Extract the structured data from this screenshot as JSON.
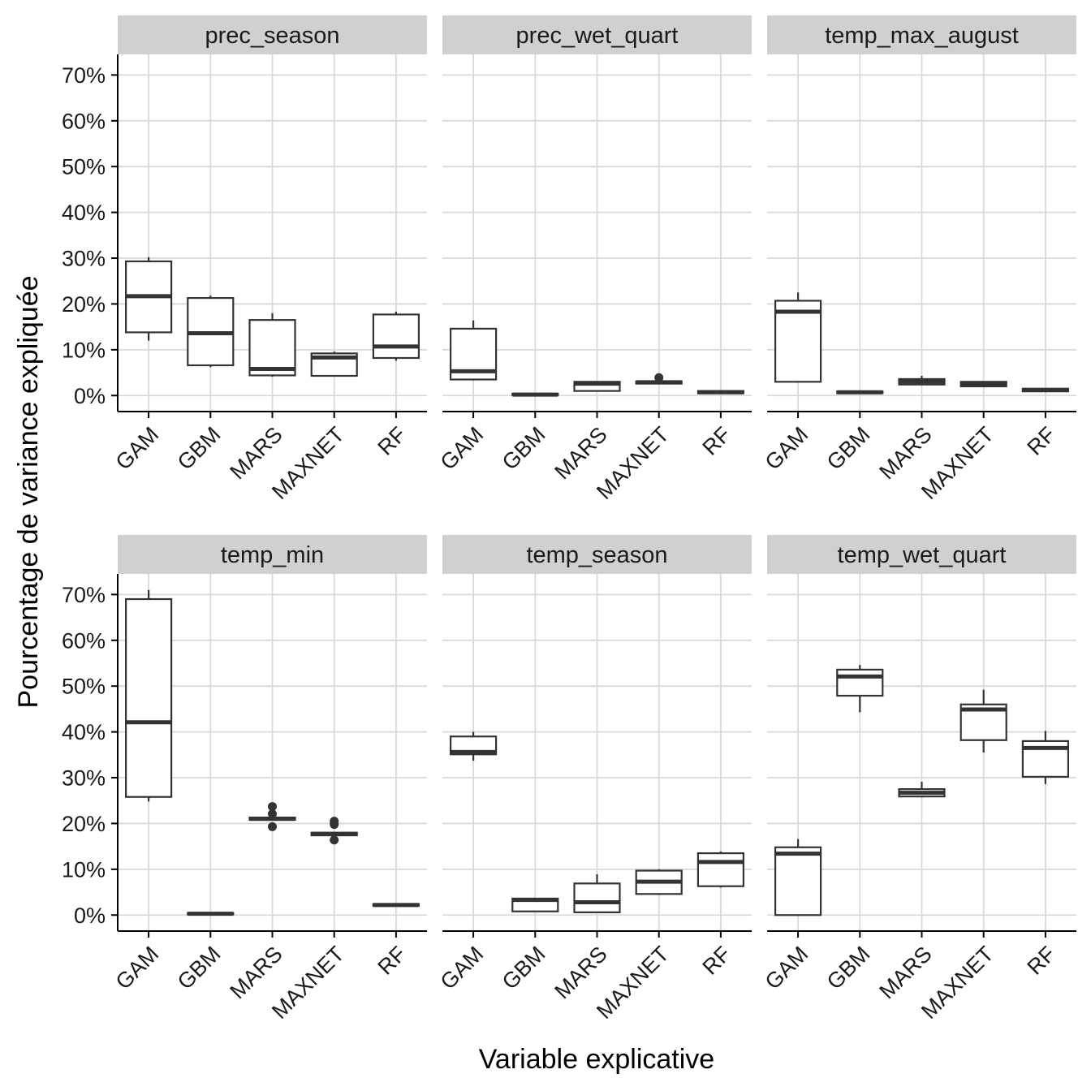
{
  "chart_data": {
    "type": "boxplot",
    "xlabel": "Variable explicative",
    "ylabel": "Pourcentage de variance expliquée",
    "ylim": [
      -3.5,
      74.5
    ],
    "yticks": [
      0,
      10,
      20,
      30,
      40,
      50,
      60,
      70
    ],
    "ytick_labels": [
      "0%",
      "10%",
      "20%",
      "30%",
      "40%",
      "50%",
      "60%",
      "70%"
    ],
    "categories": [
      "GAM",
      "GBM",
      "MARS",
      "MAXNET",
      "RF"
    ],
    "grid": true,
    "colors": {
      "box_stroke": "#333333",
      "strip": "#d0d0d0",
      "grid": "#d9d9d9"
    },
    "facets": [
      {
        "name": "prec_season",
        "boxes": [
          {
            "category": "GAM",
            "min": 12,
            "q1": 13.8,
            "median": 21.7,
            "q3": 29.3,
            "max": 30.2,
            "outliers": []
          },
          {
            "category": "GBM",
            "min": 6.2,
            "q1": 6.6,
            "median": 13.6,
            "q3": 21.3,
            "max": 21.8,
            "outliers": []
          },
          {
            "category": "MARS",
            "min": 4.1,
            "q1": 4.4,
            "median": 5.8,
            "q3": 16.5,
            "max": 18.0,
            "outliers": []
          },
          {
            "category": "MAXNET",
            "min": 4.3,
            "q1": 4.3,
            "median": 8.3,
            "q3": 9.2,
            "max": 9.6,
            "outliers": []
          },
          {
            "category": "RF",
            "min": 7.6,
            "q1": 8.2,
            "median": 10.7,
            "q3": 17.7,
            "max": 18.3,
            "outliers": []
          }
        ]
      },
      {
        "name": "prec_wet_quart",
        "boxes": [
          {
            "category": "GAM",
            "min": 3.3,
            "q1": 3.5,
            "median": 5.3,
            "q3": 14.6,
            "max": 16.4,
            "outliers": []
          },
          {
            "category": "GBM",
            "min": 0.0,
            "q1": 0.1,
            "median": 0.2,
            "q3": 0.4,
            "max": 0.5,
            "outliers": []
          },
          {
            "category": "MARS",
            "min": 1.0,
            "q1": 1.0,
            "median": 2.6,
            "q3": 3.0,
            "max": 3.1,
            "outliers": []
          },
          {
            "category": "MAXNET",
            "min": 2.5,
            "q1": 2.6,
            "median": 2.9,
            "q3": 3.1,
            "max": 3.2,
            "outliers": [
              3.9
            ]
          },
          {
            "category": "RF",
            "min": 0.4,
            "q1": 0.5,
            "median": 0.7,
            "q3": 1.0,
            "max": 1.1,
            "outliers": []
          }
        ]
      },
      {
        "name": "temp_max_august",
        "boxes": [
          {
            "category": "GAM",
            "min": 3.0,
            "q1": 3.0,
            "median": 18.3,
            "q3": 20.7,
            "max": 22.5,
            "outliers": []
          },
          {
            "category": "GBM",
            "min": 0.4,
            "q1": 0.5,
            "median": 0.7,
            "q3": 0.9,
            "max": 1.0,
            "outliers": []
          },
          {
            "category": "MARS",
            "min": 2.3,
            "q1": 2.4,
            "median": 3.0,
            "q3": 3.6,
            "max": 4.3,
            "outliers": []
          },
          {
            "category": "MAXNET",
            "min": 1.9,
            "q1": 2.0,
            "median": 2.6,
            "q3": 3.0,
            "max": 3.1,
            "outliers": []
          },
          {
            "category": "RF",
            "min": 0.8,
            "q1": 0.9,
            "median": 1.2,
            "q3": 1.5,
            "max": 1.6,
            "outliers": []
          }
        ]
      },
      {
        "name": "temp_min",
        "boxes": [
          {
            "category": "GAM",
            "min": 24.8,
            "q1": 25.8,
            "median": 42.1,
            "q3": 69.0,
            "max": 71.0,
            "outliers": []
          },
          {
            "category": "GBM",
            "min": 0.1,
            "q1": 0.15,
            "median": 0.3,
            "q3": 0.45,
            "max": 0.5,
            "outliers": []
          },
          {
            "category": "MARS",
            "min": 20.7,
            "q1": 20.8,
            "median": 21.0,
            "q3": 21.3,
            "max": 21.4,
            "outliers": [
              19.3,
              22.1,
              23.7
            ]
          },
          {
            "category": "MAXNET",
            "min": 17.2,
            "q1": 17.4,
            "median": 17.7,
            "q3": 18.0,
            "max": 18.1,
            "outliers": [
              16.4,
              19.8,
              20.5
            ]
          },
          {
            "category": "RF",
            "min": 1.9,
            "q1": 2.0,
            "median": 2.2,
            "q3": 2.4,
            "max": 2.5,
            "outliers": []
          }
        ]
      },
      {
        "name": "temp_season",
        "boxes": [
          {
            "category": "GAM",
            "min": 33.7,
            "q1": 35.1,
            "median": 35.6,
            "q3": 39.0,
            "max": 40.0,
            "outliers": []
          },
          {
            "category": "GBM",
            "min": 0.8,
            "q1": 0.8,
            "median": 3.3,
            "q3": 3.6,
            "max": 3.7,
            "outliers": []
          },
          {
            "category": "MARS",
            "min": 0.5,
            "q1": 0.6,
            "median": 2.8,
            "q3": 6.9,
            "max": 8.9,
            "outliers": []
          },
          {
            "category": "MAXNET",
            "min": 4.4,
            "q1": 4.6,
            "median": 7.3,
            "q3": 9.7,
            "max": 10.0,
            "outliers": []
          },
          {
            "category": "RF",
            "min": 6.0,
            "q1": 6.3,
            "median": 11.6,
            "q3": 13.5,
            "max": 13.9,
            "outliers": []
          }
        ]
      },
      {
        "name": "temp_wet_quart",
        "boxes": [
          {
            "category": "GAM",
            "min": 0.0,
            "q1": 0.0,
            "median": 13.4,
            "q3": 14.8,
            "max": 16.6,
            "outliers": []
          },
          {
            "category": "GBM",
            "min": 44.3,
            "q1": 47.9,
            "median": 52.1,
            "q3": 53.6,
            "max": 54.6,
            "outliers": []
          },
          {
            "category": "MARS",
            "min": 25.7,
            "q1": 25.9,
            "median": 26.7,
            "q3": 27.5,
            "max": 29.1,
            "outliers": []
          },
          {
            "category": "MAXNET",
            "min": 35.5,
            "q1": 38.2,
            "median": 44.9,
            "q3": 46.0,
            "max": 49.2,
            "outliers": []
          },
          {
            "category": "RF",
            "min": 28.6,
            "q1": 30.2,
            "median": 36.5,
            "q3": 38.0,
            "max": 40.2,
            "outliers": []
          }
        ]
      }
    ]
  }
}
